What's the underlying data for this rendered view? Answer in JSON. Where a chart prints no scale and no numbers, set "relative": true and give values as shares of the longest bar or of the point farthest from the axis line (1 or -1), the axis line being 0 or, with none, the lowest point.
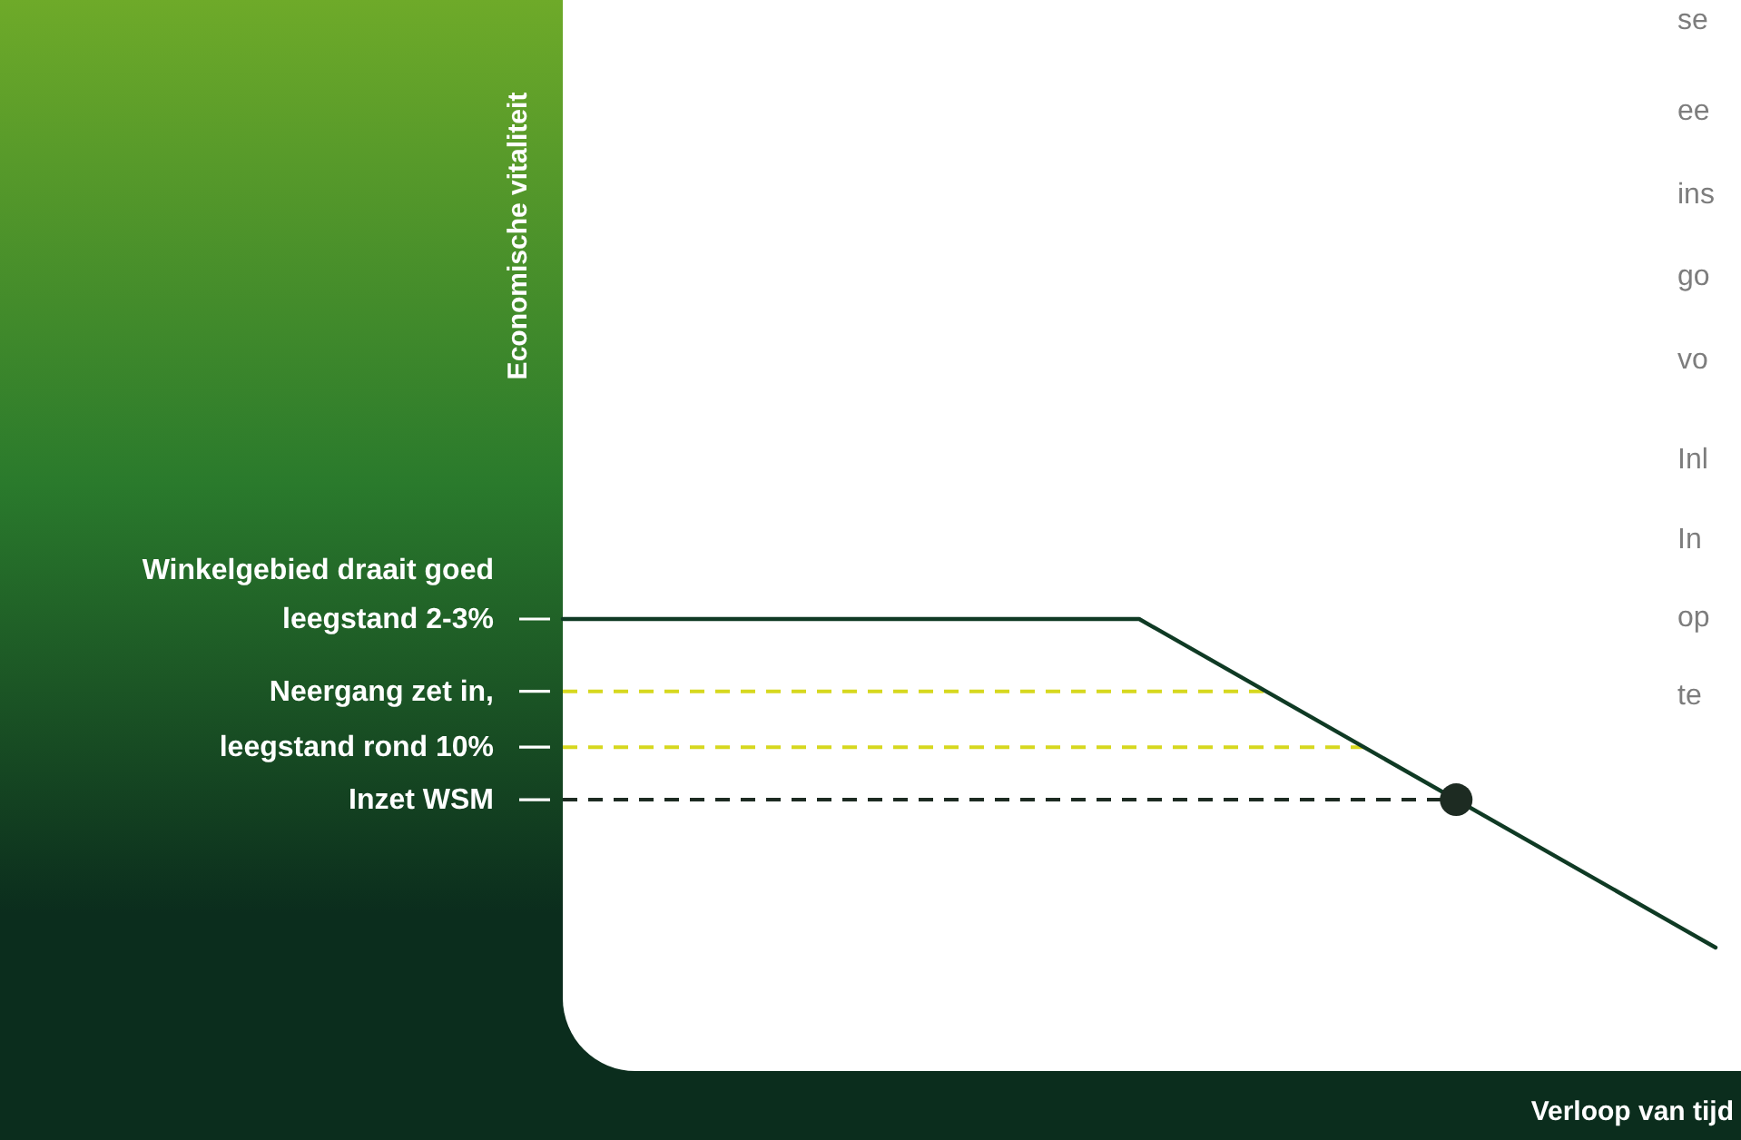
{
  "chart_data": {
    "type": "line",
    "relative": true,
    "categories": [
      null,
      null,
      null
    ],
    "series": [
      {
        "color": "#0f3a24",
        "values": [
          1,
          1,
          0
        ]
      }
    ],
    "ref_lines": [
      {
        "axis": "y",
        "value": 0.78,
        "label": "Neergang zet in,",
        "color": "#d6d81e",
        "line_style": "dashed"
      },
      {
        "axis": "y",
        "value": 0.61,
        "label": "leegstand rond 10%",
        "color": "#d6d81e",
        "line_style": "dashed"
      },
      {
        "axis": "y",
        "value": 0.45,
        "label": "Inzet WSM",
        "color": "#1d2b22",
        "line_style": "dashed"
      }
    ],
    "annotations": [
      "Winkelgebied draait goed\nleegstand 2-3%",
      "Economische vitaliteit",
      "Verloop van tijd",
      "se",
      "ee",
      "ins",
      "go",
      "vo",
      "Inl",
      "In",
      "op",
      "te"
    ]
  }
}
